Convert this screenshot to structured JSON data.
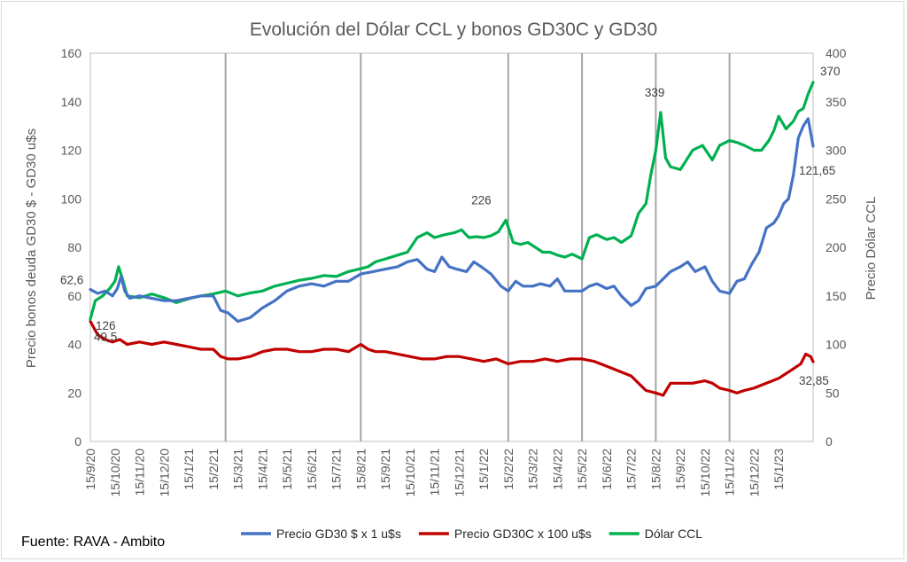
{
  "chart_data": {
    "type": "line",
    "title": "Evolución del Dólar CCL y bonos GD30C y GD30",
    "ylabel_left": "Precio bonos deuda GD30 $ - GD30 u$s",
    "ylabel_right": "Precio Dólar CCL",
    "ylim_left": [
      0,
      160
    ],
    "ylim_right": [
      0,
      400
    ],
    "yticks_left": [
      "0",
      "20",
      "40",
      "60",
      "80",
      "100",
      "120",
      "140",
      "160"
    ],
    "yticks_right": [
      "0",
      "50",
      "100",
      "150",
      "200",
      "250",
      "300",
      "350",
      "400"
    ],
    "x_ticks": [
      "15/9/20",
      "15/10/20",
      "15/11/20",
      "15/12/20",
      "15/1/21",
      "15/2/21",
      "15/3/21",
      "15/4/21",
      "15/5/21",
      "15/6/21",
      "15/7/21",
      "15/8/21",
      "15/9/21",
      "15/10/21",
      "15/11/21",
      "15/12/21",
      "15/1/22",
      "15/2/22",
      "15/3/22",
      "15/4/22",
      "15/5/22",
      "15/6/22",
      "15/7/22",
      "15/8/22",
      "15/9/22",
      "15/10/22",
      "15/11/22",
      "15/12/22",
      "15/1/23"
    ],
    "vertical_markers": [
      5.5,
      11.0,
      17.0,
      20.0,
      23.0,
      26.0
    ],
    "grid": false,
    "legend": "bottom",
    "source": "Fuente: RAVA - Ambito",
    "series": [
      {
        "name": "Precio GD30 $ x 1 u$s",
        "axis": "left",
        "color": "#4472c4",
        "x": [
          0,
          0.3,
          0.6,
          0.9,
          1.1,
          1.25,
          1.4,
          1.6,
          2,
          2.5,
          3,
          3.5,
          4,
          4.5,
          5,
          5.3,
          5.6,
          6,
          6.5,
          7,
          7.5,
          8,
          8.5,
          9,
          9.5,
          10,
          10.5,
          11,
          11.5,
          12,
          12.5,
          12.9,
          13.3,
          13.7,
          14,
          14.3,
          14.6,
          14.9,
          15.3,
          15.6,
          15.9,
          16.3,
          16.7,
          17,
          17.3,
          17.6,
          18,
          18.3,
          18.7,
          19,
          19.3,
          19.7,
          20,
          20.3,
          20.6,
          21,
          21.3,
          21.6,
          22,
          22.3,
          22.6,
          23,
          23.3,
          23.6,
          24,
          24.3,
          24.6,
          25,
          25.3,
          25.6,
          26,
          26.3,
          26.6,
          26.9,
          27.2,
          27.5,
          27.8,
          28,
          28.2,
          28.4,
          28.6,
          28.8,
          29,
          29.2,
          29.4
        ],
        "y": [
          62.6,
          61,
          62,
          60,
          63,
          68,
          62,
          59,
          60,
          59,
          58,
          58,
          59,
          60,
          60,
          54,
          53,
          49.5,
          51,
          55,
          58,
          62,
          64,
          65,
          64,
          66,
          66,
          69,
          70,
          71,
          72,
          74,
          75,
          71,
          70,
          76,
          72,
          71,
          70,
          74,
          72,
          69,
          64,
          62,
          66,
          64,
          64,
          65,
          64,
          67,
          62,
          62,
          62,
          64,
          65,
          63,
          64,
          60,
          56,
          58,
          63,
          64,
          67,
          70,
          72,
          74,
          70,
          72,
          66,
          62,
          61,
          66,
          67,
          73,
          78,
          88,
          90,
          93,
          98,
          100,
          110,
          125,
          130,
          133,
          121.65
        ]
      },
      {
        "name": "Precio GD30C x 100 u$s",
        "axis": "left",
        "color": "#c00000",
        "x": [
          0,
          0.3,
          0.6,
          0.9,
          1.2,
          1.5,
          2,
          2.5,
          3,
          3.5,
          4,
          4.5,
          5,
          5.3,
          5.6,
          6,
          6.5,
          7,
          7.5,
          8,
          8.5,
          9,
          9.5,
          10,
          10.5,
          11,
          11.3,
          11.6,
          12,
          12.5,
          13,
          13.5,
          14,
          14.5,
          15,
          15.5,
          16,
          16.5,
          17,
          17.5,
          18,
          18.5,
          19,
          19.5,
          20,
          20.5,
          21,
          21.5,
          22,
          22.3,
          22.6,
          23,
          23.3,
          23.6,
          24,
          24.5,
          25,
          25.3,
          25.6,
          26,
          26.3,
          26.6,
          27,
          27.5,
          28,
          28.3,
          28.6,
          28.9,
          29.1,
          29.3,
          29.4
        ],
        "y": [
          49.5,
          44,
          42,
          41,
          42,
          40,
          41,
          40,
          41,
          40,
          39,
          38,
          38,
          35,
          34,
          34,
          35,
          37,
          38,
          38,
          37,
          37,
          38,
          38,
          37,
          40,
          38,
          37,
          37,
          36,
          35,
          34,
          34,
          35,
          35,
          34,
          33,
          34,
          32,
          33,
          33,
          34,
          33,
          34,
          34,
          33,
          31,
          29,
          27,
          24,
          21,
          20,
          19,
          24,
          24,
          24,
          25,
          24,
          22,
          21,
          20,
          21,
          22,
          24,
          26,
          28,
          30,
          32,
          36,
          35,
          32.85
        ]
      },
      {
        "name": "Dólar CCL",
        "axis": "right",
        "color": "#00b050",
        "x": [
          0,
          0.2,
          0.5,
          0.8,
          1,
          1.15,
          1.3,
          1.5,
          2,
          2.5,
          3,
          3.5,
          4,
          4.5,
          5,
          5.5,
          6,
          6.5,
          7,
          7.5,
          8,
          8.5,
          9,
          9.5,
          10,
          10.5,
          11,
          11.3,
          11.6,
          12,
          12.5,
          12.9,
          13.3,
          13.7,
          14,
          14.4,
          14.8,
          15.1,
          15.4,
          15.7,
          16,
          16.3,
          16.6,
          16.9,
          17.2,
          17.5,
          17.8,
          18.1,
          18.4,
          18.7,
          19,
          19.3,
          19.6,
          20,
          20.3,
          20.6,
          21,
          21.3,
          21.6,
          22,
          22.3,
          22.6,
          22.8,
          23,
          23.2,
          23.4,
          23.6,
          24,
          24.5,
          24.9,
          25.3,
          25.6,
          26,
          26.3,
          26.6,
          27,
          27.3,
          27.6,
          27.8,
          28,
          28.3,
          28.6,
          28.8,
          29,
          29.2,
          29.4
        ],
        "y": [
          126,
          145,
          150,
          158,
          165,
          180,
          168,
          150,
          148,
          152,
          148,
          143,
          147,
          150,
          152,
          155,
          150,
          153,
          155,
          160,
          163,
          166,
          168,
          171,
          170,
          175,
          178,
          180,
          185,
          188,
          192,
          195,
          210,
          215,
          210,
          213,
          215,
          218,
          210,
          211,
          210,
          212,
          216,
          228,
          205,
          203,
          205,
          200,
          195,
          195,
          192,
          190,
          193,
          188,
          210,
          213,
          208,
          210,
          205,
          212,
          235,
          245,
          275,
          300,
          339,
          292,
          283,
          280,
          300,
          305,
          290,
          305,
          310,
          308,
          305,
          300,
          300,
          310,
          320,
          335,
          322,
          330,
          340,
          343,
          358,
          370
        ]
      }
    ],
    "annotations": [
      {
        "text": "62,6",
        "x": 0.0,
        "axis": "left",
        "y": 62.6
      },
      {
        "text": "126",
        "x": 0.0,
        "axis": "right",
        "y": 126
      },
      {
        "text": "49,5",
        "x": 0.0,
        "axis": "left",
        "y": 49.5
      },
      {
        "text": "226",
        "x": 16.0,
        "axis": "right",
        "y": 226
      },
      {
        "text": "339",
        "x": 23.2,
        "axis": "right",
        "y": 339
      },
      {
        "text": "370",
        "x": 29.4,
        "axis": "right",
        "y": 370
      },
      {
        "text": "121,65",
        "x": 29.4,
        "axis": "left",
        "y": 121.65
      },
      {
        "text": "32,85",
        "x": 29.4,
        "axis": "left",
        "y": 32.85
      }
    ]
  }
}
